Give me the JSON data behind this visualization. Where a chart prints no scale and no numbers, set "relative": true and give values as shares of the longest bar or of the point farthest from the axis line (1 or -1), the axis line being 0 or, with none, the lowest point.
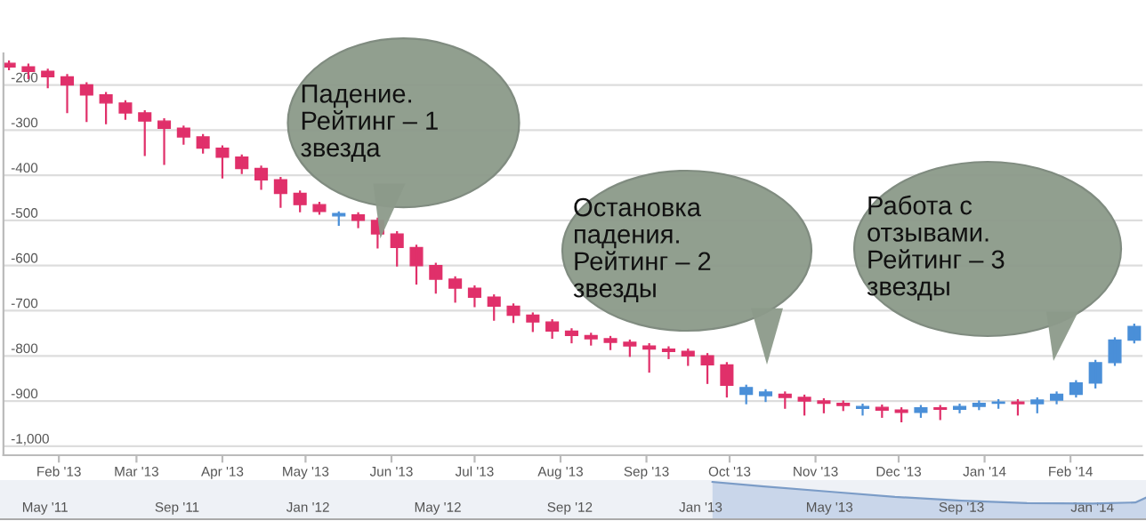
{
  "chart_data": [
    {
      "type": "candlestick",
      "grid": "y",
      "xlim": [
        "2013-01-12",
        "2014-02-27"
      ],
      "ylim": [
        -1020,
        -130
      ],
      "yticks": [
        -200,
        -300,
        -400,
        -500,
        -600,
        -700,
        -800,
        -900,
        {
          "value": -1000,
          "label": "-1,000"
        }
      ],
      "xticks": [
        {
          "value": "2013-02-01",
          "label": "Feb '13"
        },
        {
          "value": "2013-03-01",
          "label": "Mar '13"
        },
        {
          "value": "2013-04-01",
          "label": "Apr '13"
        },
        {
          "value": "2013-05-01",
          "label": "May '13"
        },
        {
          "value": "2013-06-01",
          "label": "Jun '13"
        },
        {
          "value": "2013-07-01",
          "label": "Jul '13"
        },
        {
          "value": "2013-08-01",
          "label": "Aug '13"
        },
        {
          "value": "2013-09-01",
          "label": "Sep '13"
        },
        {
          "value": "2013-10-01",
          "label": "Oct '13"
        },
        {
          "value": "2013-11-01",
          "label": "Nov '13"
        },
        {
          "value": "2013-12-01",
          "label": "Dec '13"
        },
        {
          "value": "2014-01-01",
          "label": "Jan '14"
        },
        {
          "value": "2014-02-01",
          "label": "Feb '14"
        }
      ],
      "x": [
        "2013-01-14",
        "2013-01-21",
        "2013-01-28",
        "2013-02-04",
        "2013-02-11",
        "2013-02-18",
        "2013-02-25",
        "2013-03-04",
        "2013-03-11",
        "2013-03-18",
        "2013-03-25",
        "2013-04-01",
        "2013-04-08",
        "2013-04-15",
        "2013-04-22",
        "2013-04-29",
        "2013-05-06",
        "2013-05-13",
        "2013-05-20",
        "2013-05-27",
        "2013-06-03",
        "2013-06-10",
        "2013-06-17",
        "2013-06-24",
        "2013-07-01",
        "2013-07-08",
        "2013-07-15",
        "2013-07-22",
        "2013-07-29",
        "2013-08-05",
        "2013-08-12",
        "2013-08-19",
        "2013-08-26",
        "2013-09-02",
        "2013-09-09",
        "2013-09-16",
        "2013-09-23",
        "2013-09-30",
        "2013-10-07",
        "2013-10-14",
        "2013-10-21",
        "2013-10-28",
        "2013-11-04",
        "2013-11-11",
        "2013-11-18",
        "2013-11-25",
        "2013-12-02",
        "2013-12-09",
        "2013-12-16",
        "2013-12-23",
        "2013-12-30",
        "2014-01-06",
        "2014-01-13",
        "2014-01-20",
        "2014-01-27",
        "2014-02-03",
        "2014-02-10",
        "2014-02-17",
        "2014-02-24"
      ],
      "ohlc": [
        [
          -152,
          -148,
          -165,
          -160
        ],
        [
          -160,
          -155,
          -185,
          -170
        ],
        [
          -170,
          -166,
          -205,
          -182
        ],
        [
          -182,
          -178,
          -260,
          -200
        ],
        [
          -200,
          -196,
          -280,
          -222
        ],
        [
          -222,
          -218,
          -285,
          -240
        ],
        [
          -240,
          -236,
          -275,
          -262
        ],
        [
          -262,
          -258,
          -355,
          -280
        ],
        [
          -280,
          -276,
          -375,
          -296
        ],
        [
          -296,
          -292,
          -330,
          -315
        ],
        [
          -315,
          -311,
          -350,
          -340
        ],
        [
          -340,
          -336,
          -405,
          -360
        ],
        [
          -360,
          -356,
          -395,
          -385
        ],
        [
          -385,
          -381,
          -430,
          -410
        ],
        [
          -410,
          -406,
          -470,
          -440
        ],
        [
          -440,
          -436,
          -480,
          -465
        ],
        [
          -465,
          -461,
          -485,
          -480
        ],
        [
          -490,
          -482,
          -510,
          -485
        ],
        [
          -488,
          -484,
          -515,
          -500
        ],
        [
          -500,
          -496,
          -560,
          -530
        ],
        [
          -530,
          -526,
          -600,
          -560
        ],
        [
          -560,
          -556,
          -640,
          -600
        ],
        [
          -600,
          -596,
          -660,
          -630
        ],
        [
          -630,
          -626,
          -680,
          -650
        ],
        [
          -650,
          -646,
          -690,
          -670
        ],
        [
          -670,
          -666,
          -720,
          -690
        ],
        [
          -690,
          -686,
          -725,
          -710
        ],
        [
          -710,
          -706,
          -745,
          -725
        ],
        [
          -725,
          -721,
          -760,
          -745
        ],
        [
          -745,
          -741,
          -770,
          -755
        ],
        [
          -755,
          -751,
          -775,
          -762
        ],
        [
          -762,
          -758,
          -785,
          -770
        ],
        [
          -770,
          -766,
          -800,
          -778
        ],
        [
          -778,
          -774,
          -835,
          -785
        ],
        [
          -785,
          -781,
          -805,
          -790
        ],
        [
          -790,
          -786,
          -820,
          -800
        ],
        [
          -800,
          -796,
          -860,
          -820
        ],
        [
          -820,
          -816,
          -890,
          -865
        ],
        [
          -885,
          -866,
          -905,
          -870
        ],
        [
          -888,
          -876,
          -900,
          -880
        ],
        [
          -885,
          -881,
          -915,
          -892
        ],
        [
          -892,
          -888,
          -930,
          -900
        ],
        [
          -900,
          -896,
          -925,
          -905
        ],
        [
          -905,
          -901,
          -920,
          -910
        ],
        [
          -916,
          -908,
          -930,
          -912
        ],
        [
          -914,
          -910,
          -935,
          -920
        ],
        [
          -920,
          -916,
          -945,
          -925
        ],
        [
          -925,
          -911,
          -935,
          -915
        ],
        [
          -915,
          -911,
          -940,
          -918
        ],
        [
          -918,
          -908,
          -925,
          -912
        ],
        [
          -912,
          -901,
          -918,
          -905
        ],
        [
          -905,
          -898,
          -915,
          -902
        ],
        [
          -902,
          -898,
          -930,
          -906
        ],
        [
          -906,
          -894,
          -925,
          -898
        ],
        [
          -898,
          -881,
          -905,
          -885
        ],
        [
          -885,
          -856,
          -890,
          -860
        ],
        [
          -860,
          -811,
          -870,
          -815
        ],
        [
          -815,
          -761,
          -820,
          -765
        ],
        [
          -765,
          -731,
          -770,
          -735
        ]
      ],
      "colors": [
        "#e0306a",
        "#e0306a",
        "#e0306a",
        "#e0306a",
        "#e0306a",
        "#e0306a",
        "#e0306a",
        "#e0306a",
        "#e0306a",
        "#e0306a",
        "#e0306a",
        "#e0306a",
        "#e0306a",
        "#e0306a",
        "#e0306a",
        "#e0306a",
        "#e0306a",
        "#4a8fd8",
        "#e0306a",
        "#e0306a",
        "#e0306a",
        "#e0306a",
        "#e0306a",
        "#e0306a",
        "#e0306a",
        "#e0306a",
        "#e0306a",
        "#e0306a",
        "#e0306a",
        "#e0306a",
        "#e0306a",
        "#e0306a",
        "#e0306a",
        "#e0306a",
        "#e0306a",
        "#e0306a",
        "#e0306a",
        "#e0306a",
        "#4a8fd8",
        "#4a8fd8",
        "#e0306a",
        "#e0306a",
        "#e0306a",
        "#e0306a",
        "#4a8fd8",
        "#e0306a",
        "#e0306a",
        "#4a8fd8",
        "#e0306a",
        "#4a8fd8",
        "#4a8fd8",
        "#4a8fd8",
        "#e0306a",
        "#4a8fd8",
        "#4a8fd8",
        "#4a8fd8",
        "#4a8fd8",
        "#4a8fd8",
        "#4a8fd8"
      ],
      "annotations": [
        {
          "text": "Падение.\nРейтинг – 1\nзвезда",
          "x": "2013-05-28",
          "y": -540
        },
        "Остановка\nпадения.\nРейтинг – 2\nзвезды",
        "Работа с\nотзывами.\nРейтинг – 3\nзвезды"
      ]
    },
    {
      "type": "area",
      "relative": true,
      "color": "#7b9cc7",
      "xlim": [
        "2011-03-20",
        "2014-02-20"
      ],
      "xticks": [
        {
          "value": "2011-05-01",
          "label": "May '11"
        },
        {
          "value": "2011-09-01",
          "label": "Sep '11"
        },
        {
          "value": "2012-01-01",
          "label": "Jan '12"
        },
        {
          "value": "2012-05-01",
          "label": "May '12"
        },
        {
          "value": "2012-09-01",
          "label": "Sep '12"
        },
        {
          "value": "2013-01-01",
          "label": "Jan '13"
        },
        {
          "value": "2013-05-01",
          "label": "May '13"
        },
        {
          "value": "2013-09-01",
          "label": "Sep '13"
        },
        {
          "value": "2014-01-01",
          "label": "Jan '14"
        }
      ],
      "x": [
        "2013-01-12",
        "2013-03-01",
        "2013-05-01",
        "2013-07-01",
        "2013-09-01",
        "2013-11-01",
        "2014-01-01",
        "2014-02-10",
        "2014-02-20"
      ],
      "values": [
        1.0,
        0.88,
        0.74,
        0.6,
        0.5,
        0.43,
        0.42,
        0.45,
        0.58
      ]
    }
  ]
}
